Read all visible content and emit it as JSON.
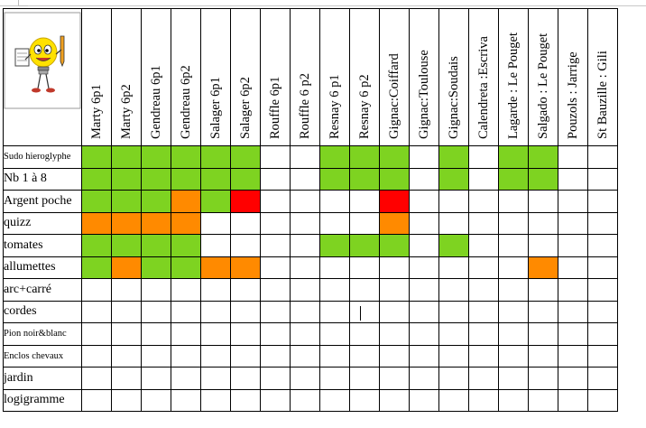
{
  "columns": [
    "Marty 6p1",
    "Marty 6p2",
    "Gendreau 6p1",
    "Gendreau 6p2",
    "Salager  6p1",
    "Salager  6p2",
    "Rouffle 6p1",
    "Rouffle 6 p2",
    "Resnay 6 p1",
    "Resnay 6 p2",
    "Gignac:Coiffard",
    "Gignac:Toulouse",
    "Gignac:Soudais",
    "Calendreta :Escriva",
    "Lagarde : Le Pouget",
    "Salgado : Le Pouget",
    "Pouzols : Jarrige",
    "St Bauzille : Gili"
  ],
  "rows": [
    {
      "label": "Sudo hieroglyphe",
      "small": true,
      "cells": [
        "g",
        "g",
        "g",
        "g",
        "g",
        "g",
        "",
        "",
        "g",
        "g",
        "g",
        "",
        "g",
        "",
        "g",
        "g",
        "",
        ""
      ]
    },
    {
      "label": "Nb 1 à 8",
      "small": false,
      "cells": [
        "g",
        "g",
        "g",
        "g",
        "g",
        "g",
        "",
        "",
        "g",
        "g",
        "g",
        "",
        "g",
        "",
        "g",
        "g",
        "",
        ""
      ]
    },
    {
      "label": "Argent poche",
      "small": false,
      "cells": [
        "g",
        "g",
        "g",
        "o",
        "g",
        "r",
        "",
        "",
        "",
        "",
        "r",
        "",
        "",
        "",
        "",
        "",
        "",
        ""
      ]
    },
    {
      "label": "quizz",
      "small": false,
      "cells": [
        "o",
        "o",
        "o",
        "o",
        "",
        "",
        "",
        "",
        "",
        "",
        "o",
        "",
        "",
        "",
        "",
        "",
        "",
        ""
      ]
    },
    {
      "label": "tomates",
      "small": false,
      "cells": [
        "g",
        "g",
        "g",
        "g",
        "",
        "",
        "",
        "",
        "g",
        "g",
        "g",
        "",
        "g",
        "",
        "",
        "",
        "",
        ""
      ]
    },
    {
      "label": "allumettes",
      "small": false,
      "cells": [
        "g",
        "o",
        "g",
        "g",
        "o",
        "o",
        "",
        "",
        "",
        "",
        "",
        "",
        "",
        "",
        "",
        "o",
        "",
        ""
      ]
    },
    {
      "label": "arc+carré",
      "small": false,
      "cells": [
        "",
        "",
        "",
        "",
        "",
        "",
        "",
        "",
        "",
        "",
        "",
        "",
        "",
        "",
        "",
        "",
        "",
        ""
      ]
    },
    {
      "label": "cordes",
      "small": false,
      "cells": [
        "",
        "",
        "",
        "",
        "",
        "",
        "",
        "",
        "",
        "",
        "",
        "",
        "",
        "",
        "",
        "",
        "",
        ""
      ]
    },
    {
      "label": "Pion noir&blanc",
      "small": true,
      "cells": [
        "",
        "",
        "",
        "",
        "",
        "",
        "",
        "",
        "",
        "",
        "",
        "",
        "",
        "",
        "",
        "",
        "",
        ""
      ]
    },
    {
      "label": "Enclos chevaux",
      "small": true,
      "cells": [
        "",
        "",
        "",
        "",
        "",
        "",
        "",
        "",
        "",
        "",
        "",
        "",
        "",
        "",
        "",
        "",
        "",
        ""
      ]
    },
    {
      "label": "jardin",
      "small": false,
      "cells": [
        "",
        "",
        "",
        "",
        "",
        "",
        "",
        "",
        "",
        "",
        "",
        "",
        "",
        "",
        "",
        "",
        "",
        ""
      ]
    },
    {
      "label": "logigramme",
      "small": false,
      "cells": [
        "",
        "",
        "",
        "",
        "",
        "",
        "",
        "",
        "",
        "",
        "",
        "",
        "",
        "",
        "",
        "",
        "",
        ""
      ]
    }
  ],
  "legend_colors": {
    "g": "#7ed321",
    "o": "#ff8a00",
    "r": "#ff0000"
  }
}
